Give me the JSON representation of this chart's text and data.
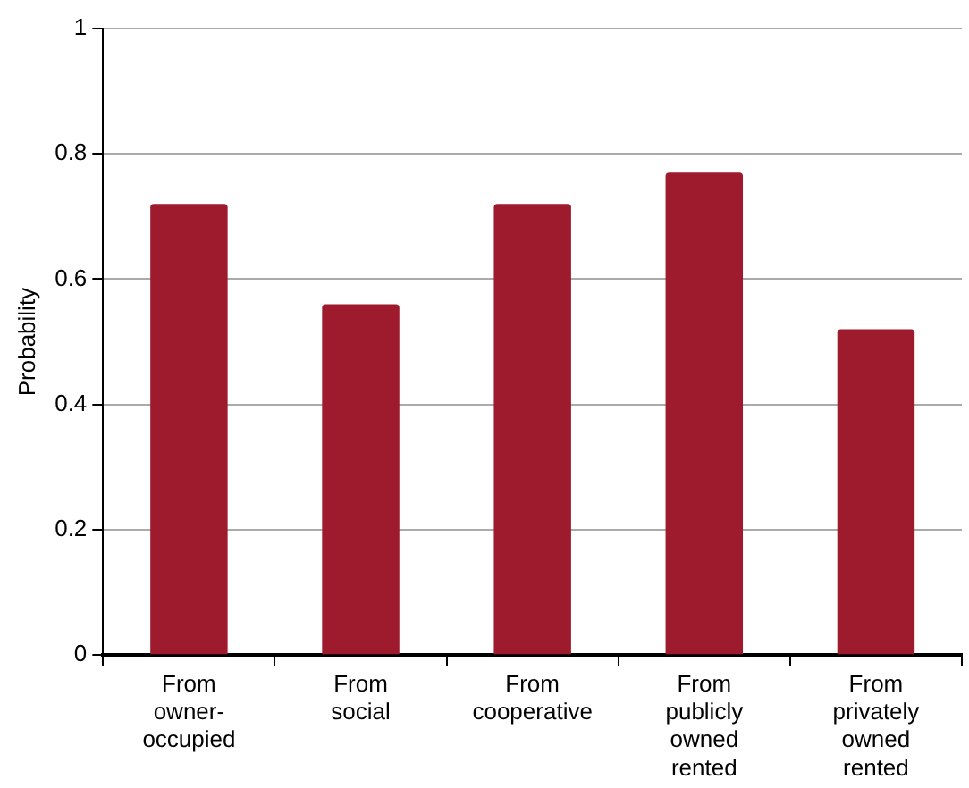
{
  "chart_data": {
    "type": "bar",
    "ylabel": "Probability",
    "categories": [
      "From owner-occupied",
      "From social",
      "From cooperative",
      "From publicly owned rented",
      "From privately owned rented"
    ],
    "values": [
      0.72,
      0.56,
      0.72,
      0.77,
      0.52
    ],
    "color": "#9e1b2e",
    "ylim": [
      0,
      1
    ],
    "yticks": [
      0,
      0.2,
      0.4,
      0.6,
      0.8,
      1
    ],
    "grid": "y",
    "legend": false
  }
}
